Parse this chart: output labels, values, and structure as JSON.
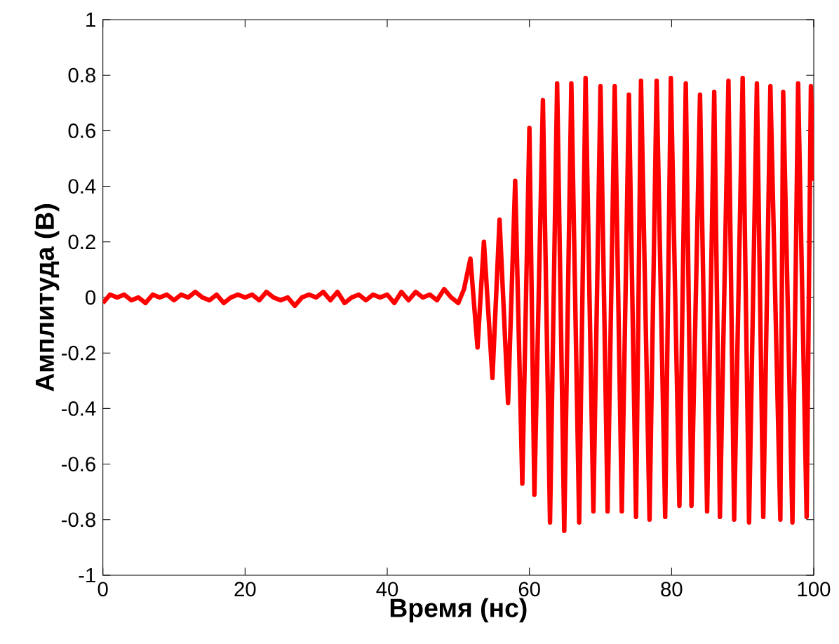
{
  "chart_data": {
    "type": "line",
    "xlabel": "Время (нс)",
    "ylabel": "Амплитуда (В)",
    "xlim": [
      0,
      100
    ],
    "ylim": [
      -1,
      1
    ],
    "xticks": [
      0,
      20,
      40,
      60,
      80,
      100
    ],
    "yticks": [
      -1,
      -0.8,
      -0.6,
      -0.4,
      -0.2,
      0,
      0.2,
      0.4,
      0.6,
      0.8,
      1
    ],
    "marker": "none",
    "line_style": "solid",
    "series": [
      {
        "color": "#ff0000",
        "x": [
          0,
          1,
          2,
          3,
          4,
          5,
          6,
          7,
          8,
          9,
          10,
          11,
          12,
          13,
          14,
          15,
          16,
          17,
          18,
          19,
          20,
          21,
          22,
          23,
          24,
          25,
          26,
          27,
          28,
          29,
          30,
          31,
          32,
          33,
          34,
          35,
          36,
          37,
          38,
          39,
          40,
          41,
          42,
          43,
          44,
          45,
          46,
          47,
          48,
          49,
          50,
          50.8,
          51.7,
          52.7,
          53.6,
          54.8,
          55.8,
          57,
          58,
          59,
          60,
          60.7,
          61.9,
          62.9,
          63.9,
          64.9,
          65.9,
          67,
          67.9,
          69,
          70,
          71,
          72,
          73,
          74,
          75,
          75.7,
          76.9,
          77.9,
          79.1,
          79.9,
          81.1,
          82,
          82.8,
          84,
          85,
          86,
          86.8,
          88,
          88.8,
          90,
          90.9,
          92,
          92.9,
          93.9,
          95.3,
          95.7,
          97,
          97.8,
          99,
          99.6,
          100
        ],
        "values": [
          -0.02,
          0.01,
          0.0,
          0.01,
          -0.01,
          0.0,
          -0.02,
          0.01,
          0.0,
          0.01,
          -0.01,
          0.01,
          0.0,
          0.02,
          0.0,
          -0.01,
          0.01,
          -0.02,
          0.0,
          0.01,
          0.0,
          0.01,
          -0.01,
          0.02,
          0.0,
          -0.01,
          0.0,
          -0.03,
          0.0,
          0.01,
          0.0,
          0.02,
          -0.01,
          0.02,
          -0.02,
          0.0,
          0.01,
          -0.01,
          0.01,
          0.0,
          0.01,
          -0.02,
          0.02,
          -0.01,
          0.02,
          0.0,
          0.01,
          -0.01,
          0.03,
          0.0,
          -0.02,
          0.03,
          0.14,
          -0.18,
          0.2,
          -0.29,
          0.28,
          -0.38,
          0.42,
          -0.67,
          0.61,
          -0.71,
          0.71,
          -0.81,
          0.77,
          -0.84,
          0.77,
          -0.81,
          0.79,
          -0.77,
          0.76,
          -0.77,
          0.76,
          -0.77,
          0.73,
          -0.79,
          0.78,
          -0.8,
          0.78,
          -0.79,
          0.79,
          -0.75,
          0.77,
          -0.75,
          0.73,
          -0.77,
          0.74,
          -0.79,
          0.78,
          -0.8,
          0.79,
          -0.81,
          0.77,
          -0.79,
          0.76,
          -0.8,
          0.74,
          -0.81,
          0.77,
          -0.79,
          0.76,
          0.42
        ]
      }
    ]
  }
}
